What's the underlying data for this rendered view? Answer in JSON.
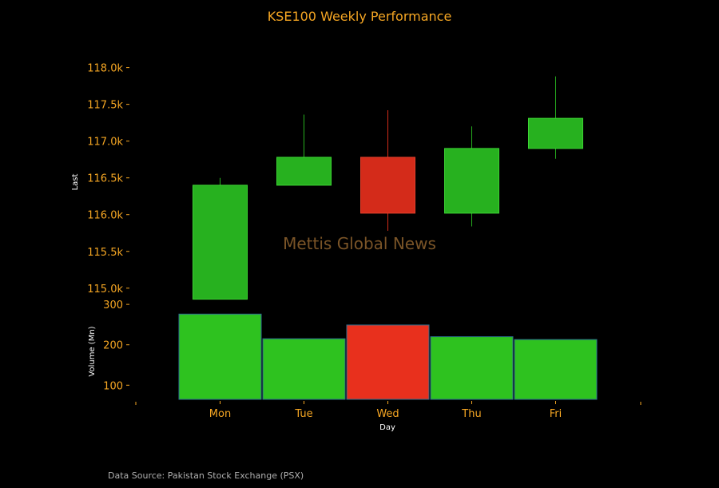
{
  "chart_data": {
    "type": "candlestick",
    "title": "KSE100 Weekly Performance",
    "categories": [
      "Mon",
      "Tue",
      "Wed",
      "Thu",
      "Fri"
    ],
    "price": {
      "ylabel": "Last",
      "ylim": [
        114900,
        118300
      ],
      "ticks": [
        115000,
        115500,
        116000,
        116500,
        117000,
        117500,
        118000
      ],
      "tick_labels": [
        "115.0k",
        "115.5k",
        "116.0k",
        "116.5k",
        "117.0k",
        "117.5k",
        "118.0k"
      ],
      "series": [
        {
          "open": 114850,
          "close": 116400,
          "high": 116500,
          "low": 114850
        },
        {
          "open": 116400,
          "close": 116780,
          "high": 117360,
          "low": 116400
        },
        {
          "open": 116780,
          "close": 116020,
          "high": 117420,
          "low": 115780
        },
        {
          "open": 116020,
          "close": 116900,
          "high": 117200,
          "low": 115840
        },
        {
          "open": 116900,
          "close": 117310,
          "high": 117880,
          "low": 116760
        }
      ]
    },
    "volume": {
      "ylabel": "Volume (Mn)",
      "ylim": [
        65,
        320
      ],
      "ticks": [
        100,
        200,
        300
      ],
      "tick_labels": [
        "100",
        "200",
        "300"
      ],
      "values": [
        276,
        215,
        249,
        220,
        213
      ]
    },
    "xlabel": "Day",
    "watermark": "Mettis Global News",
    "source": "Data Source: Pakistan Stock Exchange (PSX)",
    "colors": {
      "up": "#27b11f",
      "down": "#d42b1a",
      "up_volume": "#2ec21f",
      "down_volume": "#e8301d",
      "text": "#f5a623",
      "background": "#000000"
    }
  }
}
